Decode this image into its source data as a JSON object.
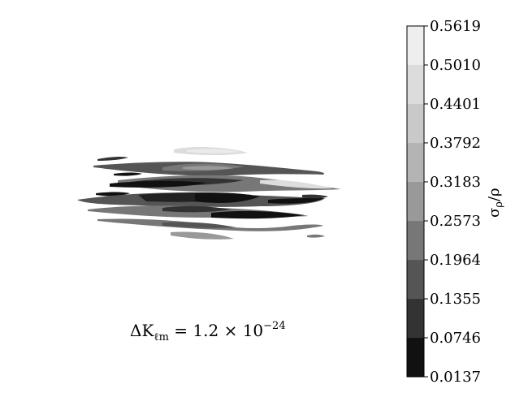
{
  "chart_data": {
    "type": "contour",
    "caption": "ΔK_ℓm = 1.2 × 10^−24",
    "colorbar": {
      "label": "σ_ρ/ρ",
      "ticks": [
        "0.0137",
        "0.0746",
        "0.1355",
        "0.1964",
        "0.2573",
        "0.3183",
        "0.3792",
        "0.4401",
        "0.5010",
        "0.5619"
      ],
      "range": [
        0.0137,
        0.5619
      ],
      "levels": [
        {
          "low": 0.0137,
          "high": 0.0746,
          "color": "#111111"
        },
        {
          "low": 0.0746,
          "high": 0.1355,
          "color": "#333333"
        },
        {
          "low": 0.1355,
          "high": 0.1964,
          "color": "#555555"
        },
        {
          "low": 0.1964,
          "high": 0.2573,
          "color": "#777777"
        },
        {
          "low": 0.2573,
          "high": 0.3183,
          "color": "#999999"
        },
        {
          "low": 0.3183,
          "high": 0.3792,
          "color": "#b4b4b4"
        },
        {
          "low": 0.3792,
          "high": 0.4401,
          "color": "#c9c9c9"
        },
        {
          "low": 0.4401,
          "high": 0.501,
          "color": "#dcdcdc"
        },
        {
          "low": 0.501,
          "high": 0.5619,
          "color": "#eeeeee"
        }
      ]
    },
    "colormap": "gray",
    "grid": false
  }
}
